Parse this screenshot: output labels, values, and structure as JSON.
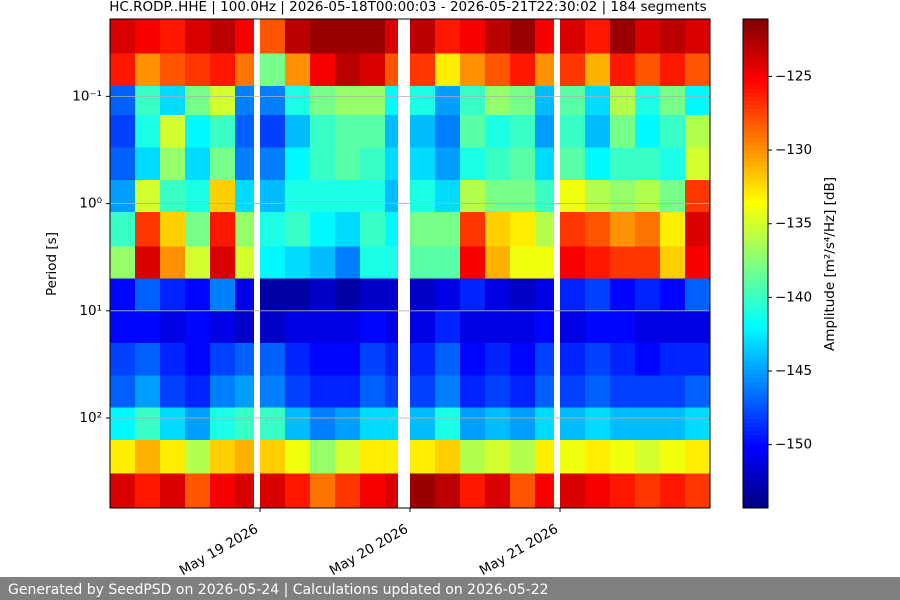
{
  "chart_data": {
    "type": "spectrogram",
    "title": "HC.RODP..HHE | 100.0Hz | 2026-05-18T00:00:03 - 2026-05-21T22:30:02 | 184 segments",
    "ylabel": "Period [s]",
    "colorbar_label": "Amplitude [m²/s⁴/Hz] [dB]",
    "footer": "Generated by SeedPSD on 2026-05-24 | Calculations updated on 2026-05-22",
    "ylog": true,
    "yinverted_small_top": true,
    "grid": true,
    "colormap": "jet",
    "xlim": [
      "2026-05-18T00:00",
      "2026-05-22T00:00"
    ],
    "xticks": [
      {
        "value": "2026-05-19T00:00",
        "label": "May 19 2026"
      },
      {
        "value": "2026-05-20T00:00",
        "label": "May 20 2026"
      },
      {
        "value": "2026-05-21T00:00",
        "label": "May 21 2026"
      }
    ],
    "ylim": [
      0.019,
      690
    ],
    "yticks": [
      {
        "value": 0.1,
        "label": "10⁻¹"
      },
      {
        "value": 1,
        "label": "10⁰"
      },
      {
        "value": 10,
        "label": "10¹"
      },
      {
        "value": 100,
        "label": "10²"
      }
    ],
    "clim": [
      -154.3,
      -121.1
    ],
    "cticks": [
      {
        "value": -125,
        "label": "−125"
      },
      {
        "value": -130,
        "label": "−130"
      },
      {
        "value": -135,
        "label": "−135"
      },
      {
        "value": -140,
        "label": "−140"
      },
      {
        "value": -145,
        "label": "−145"
      },
      {
        "value": -150,
        "label": "−150"
      }
    ],
    "xbins": [
      "2026-05-18T00:00",
      "2026-05-18T04:00",
      "2026-05-18T08:00",
      "2026-05-18T12:00",
      "2026-05-18T16:00",
      "2026-05-18T20:00",
      "2026-05-18T23:00",
      "2026-05-19T00:00",
      "2026-05-19T04:00",
      "2026-05-19T08:00",
      "2026-05-19T12:00",
      "2026-05-19T16:00",
      "2026-05-19T20:00",
      "2026-05-19T22:00",
      "2026-05-20T00:00",
      "2026-05-20T04:00",
      "2026-05-20T08:00",
      "2026-05-20T12:00",
      "2026-05-20T16:00",
      "2026-05-20T20:00",
      "2026-05-20T23:00",
      "2026-05-21T00:00",
      "2026-05-21T04:00",
      "2026-05-21T08:00",
      "2026-05-21T12:00",
      "2026-05-21T16:00",
      "2026-05-21T20:00",
      "2026-05-22T00:00"
    ],
    "ybins": [
      0.019,
      0.04,
      0.08,
      0.15,
      0.3,
      0.6,
      1.2,
      2.5,
      5,
      10,
      20,
      40,
      80,
      160,
      330,
      690
    ],
    "values": [
      [
        -124,
        -125,
        -126,
        -124,
        -123,
        -125,
        null,
        -128,
        -123,
        -122,
        -122,
        -122,
        -124,
        null,
        -123,
        -126,
        -125,
        -123,
        -122,
        -125,
        null,
        -124,
        -126,
        -122,
        -124,
        -123,
        -124
      ],
      [
        -126,
        -130,
        -128,
        -127,
        -126,
        -129,
        null,
        -138,
        -130,
        -125,
        -123,
        -124,
        -128,
        null,
        -127,
        -133,
        -130,
        -128,
        -126,
        -130,
        null,
        -127,
        -131,
        -126,
        -128,
        -126,
        -128
      ],
      [
        -147,
        -140,
        -143,
        -138,
        -135,
        -146,
        null,
        -146,
        -141,
        -138,
        -137,
        -137,
        -142,
        null,
        -141,
        -145,
        -140,
        -137,
        -138,
        -144,
        null,
        -139,
        -143,
        -136,
        -141,
        -138,
        -142
      ],
      [
        -148,
        -141,
        -135,
        -142,
        -140,
        -147,
        null,
        -148,
        -144,
        -140,
        -139,
        -139,
        -144,
        null,
        -144,
        -146,
        -139,
        -141,
        -140,
        -145,
        null,
        -140,
        -144,
        -138,
        -142,
        -140,
        -136
      ],
      [
        -147,
        -143,
        -137,
        -143,
        -138,
        -146,
        null,
        -146,
        -142,
        -140,
        -139,
        -140,
        -143,
        null,
        -143,
        -145,
        -141,
        -140,
        -139,
        -143,
        null,
        -139,
        -142,
        -140,
        -140,
        -141,
        -135
      ],
      [
        -145,
        -135,
        -140,
        -141,
        -132,
        -143,
        null,
        -144,
        -141,
        -141,
        -141,
        -141,
        -144,
        null,
        -141,
        -143,
        -136,
        -138,
        -138,
        -140,
        null,
        -134,
        -136,
        -137,
        -136,
        -138,
        -127
      ],
      [
        -140,
        -127,
        -132,
        -138,
        -126,
        -137,
        null,
        -141,
        -140,
        -142,
        -143,
        -140,
        -142,
        null,
        -138,
        -138,
        -127,
        -132,
        -133,
        -136,
        null,
        -127,
        -128,
        -130,
        -129,
        -133,
        -124
      ],
      [
        -137,
        -124,
        -130,
        -135,
        -124,
        -135,
        null,
        -142,
        -143,
        -144,
        -146,
        -141,
        -141,
        null,
        -139,
        -139,
        -125,
        -131,
        -134,
        -134,
        null,
        -125,
        -126,
        -127,
        -127,
        -132,
        -125
      ],
      [
        -150,
        -147,
        -149,
        -150,
        -146,
        -151,
        null,
        -153,
        -153,
        -152,
        -153,
        -152,
        -152,
        null,
        -152,
        -151,
        -149,
        -151,
        -152,
        -151,
        null,
        -149,
        -148,
        -150,
        -149,
        -150,
        -147
      ],
      [
        -150,
        -150,
        -151,
        -150,
        -151,
        -152,
        null,
        -152,
        -151,
        -151,
        -151,
        -150,
        -151,
        null,
        -151,
        -149,
        -151,
        -151,
        -151,
        -150,
        null,
        -151,
        -150,
        -150,
        -151,
        -151,
        -151
      ],
      [
        -148,
        -147,
        -149,
        -150,
        -148,
        -147,
        null,
        -147,
        -149,
        -150,
        -150,
        -148,
        -149,
        null,
        -149,
        -147,
        -150,
        -149,
        -150,
        -148,
        null,
        -149,
        -148,
        -149,
        -150,
        -149,
        -149
      ],
      [
        -147,
        -145,
        -148,
        -149,
        -146,
        -145,
        null,
        -146,
        -148,
        -149,
        -149,
        -147,
        -148,
        null,
        -148,
        -146,
        -149,
        -148,
        -149,
        -147,
        null,
        -148,
        -147,
        -148,
        -148,
        -148,
        -147
      ],
      [
        -142,
        -140,
        -143,
        -145,
        -141,
        -140,
        null,
        -140,
        -144,
        -146,
        -145,
        -143,
        -143,
        null,
        -144,
        -141,
        -145,
        -144,
        -145,
        -143,
        null,
        -144,
        -143,
        -144,
        -144,
        -144,
        -143
      ],
      [
        -133,
        -131,
        -133,
        -136,
        -132,
        -131,
        null,
        -132,
        -134,
        -137,
        -135,
        -133,
        -133,
        null,
        -133,
        -132,
        -136,
        -135,
        -136,
        -133,
        null,
        -134,
        -133,
        -134,
        -135,
        -134,
        -133
      ],
      [
        -124,
        -126,
        -124,
        -128,
        -125,
        -124,
        null,
        -124,
        -126,
        -129,
        -127,
        -125,
        -124,
        null,
        -122,
        -123,
        -126,
        -124,
        -128,
        -125,
        null,
        -124,
        -125,
        -126,
        -127,
        -126,
        -127
      ]
    ]
  }
}
